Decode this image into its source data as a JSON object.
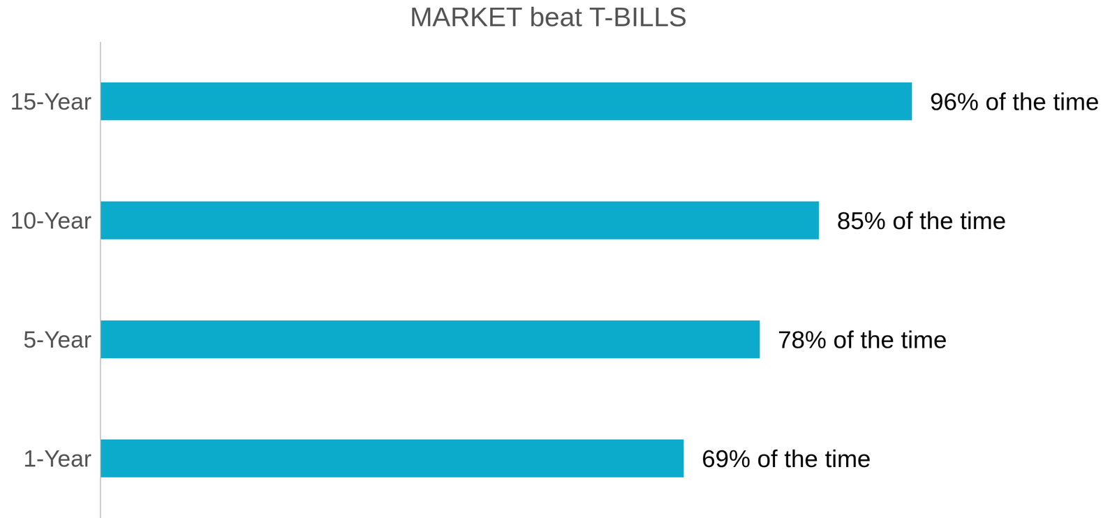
{
  "chart_data": {
    "type": "bar",
    "title": "MARKET beat T-BILLS",
    "orientation": "horizontal",
    "categories": [
      "15-Year",
      "10-Year",
      "5-Year",
      "1-Year"
    ],
    "values": [
      96,
      85,
      78,
      69
    ],
    "value_labels": [
      "96% of the time",
      "85% of the time",
      "78% of the time",
      "69% of the time"
    ],
    "data_labels": true,
    "color": "#0dabcb",
    "xlim": [
      0,
      100
    ],
    "grid": false,
    "tick_labels": "y"
  }
}
